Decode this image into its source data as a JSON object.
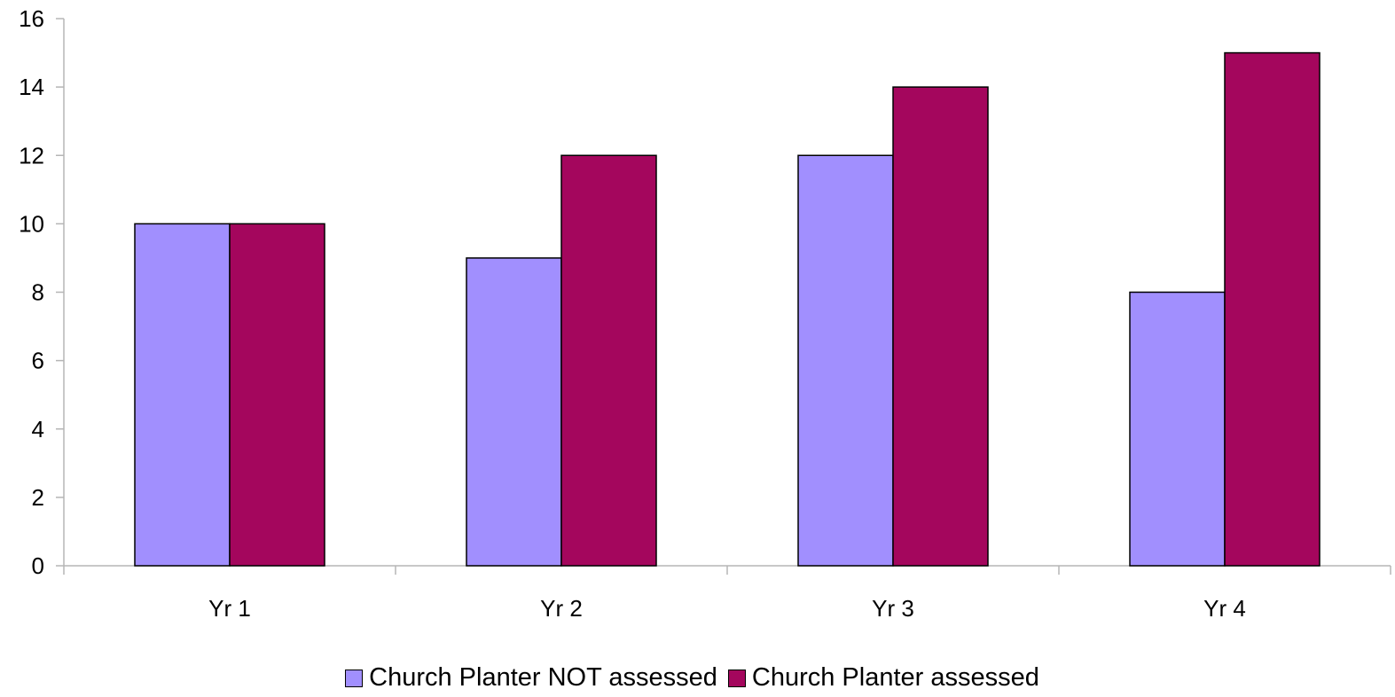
{
  "chart_data": {
    "type": "bar",
    "categories": [
      "Yr 1",
      "Yr 2",
      "Yr 3",
      "Yr 4"
    ],
    "series": [
      {
        "name": "Church Planter NOT assessed",
        "values": [
          10,
          9,
          12,
          8
        ],
        "color": "#a18ffe"
      },
      {
        "name": "Church Planter assessed",
        "values": [
          10,
          12,
          14,
          15
        ],
        "color": "#a4065d"
      }
    ],
    "title": "",
    "xlabel": "",
    "ylabel": "",
    "ylim": [
      0,
      16
    ],
    "yticks": [
      "0",
      "2",
      "4",
      "6",
      "8",
      "10",
      "12",
      "14",
      "16"
    ],
    "grid": false,
    "legend_position": "bottom"
  }
}
